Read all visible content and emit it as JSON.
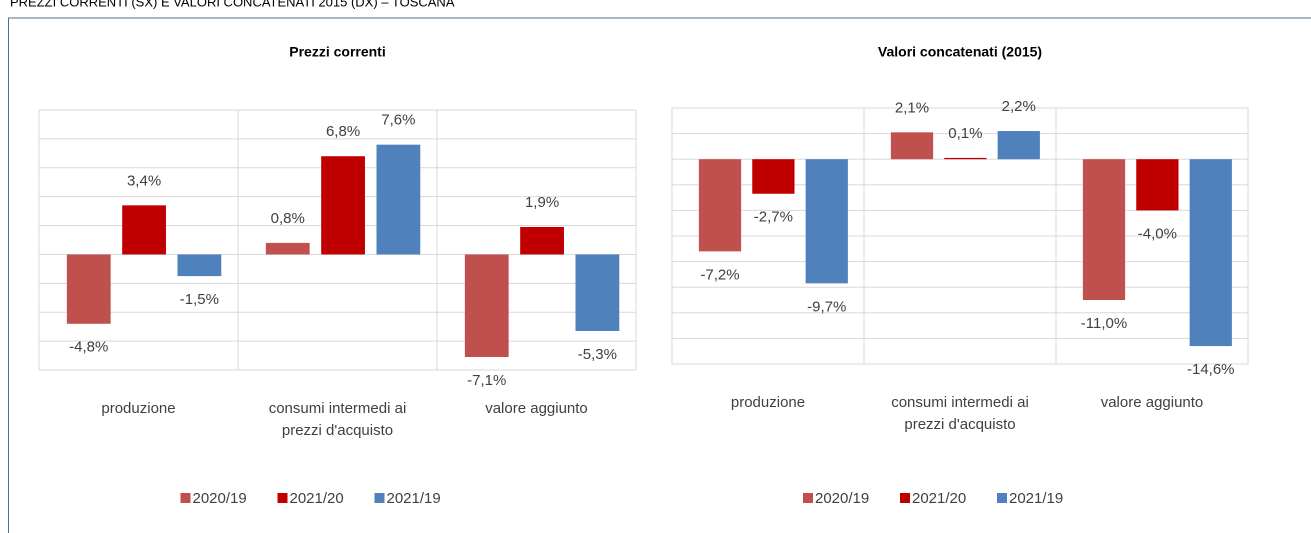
{
  "header": {
    "title": "PREZZI CORRENTI (SX) E VALORI CONCATENATI 2015 (DX) – TOSCANA"
  },
  "chart_data": [
    {
      "type": "bar",
      "title": "Prezzi correnti",
      "categories": [
        "produzione",
        "consumi intermedi ai prezzi d'acquisto",
        "valore aggiunto"
      ],
      "series": [
        {
          "name": "2020/19",
          "color": "#c0504d",
          "values": [
            -4.8,
            0.8,
            -7.1
          ],
          "value_labels": [
            "-4,8%",
            "0,8%",
            "-7,1%"
          ]
        },
        {
          "name": "2021/20",
          "color": "#c00000",
          "values": [
            3.4,
            6.8,
            1.9
          ],
          "value_labels": [
            "3,4%",
            "6,8%",
            "1,9%"
          ]
        },
        {
          "name": "2021/19",
          "color": "#4f81bd",
          "values": [
            -1.5,
            7.6,
            -5.3
          ],
          "value_labels": [
            "-1,5%",
            "7,6%",
            "-5,3%"
          ]
        }
      ],
      "ylim": [
        -8,
        10
      ],
      "yticks": [
        -8,
        -6,
        -4,
        -2,
        0,
        2,
        4,
        6,
        8,
        10
      ],
      "grid": true,
      "legend": "bottom"
    },
    {
      "type": "bar",
      "title": "Valori concatenati (2015)",
      "categories": [
        "produzione",
        "consumi intermedi ai prezzi d'acquisto",
        "valore aggiunto"
      ],
      "series": [
        {
          "name": "2020/19",
          "color": "#c0504d",
          "values": [
            -7.2,
            2.1,
            -11.0
          ],
          "value_labels": [
            "-7,2%",
            "2,1%",
            "-11,0%"
          ]
        },
        {
          "name": "2021/20",
          "color": "#c00000",
          "values": [
            -2.7,
            0.1,
            -4.0
          ],
          "value_labels": [
            "-2,7%",
            "0,1%",
            "-4,0%"
          ]
        },
        {
          "name": "2021/19",
          "color": "#4f81bd",
          "values": [
            -9.7,
            2.2,
            -14.6
          ],
          "value_labels": [
            "-9,7%",
            "2,2%",
            "-14,6%"
          ]
        }
      ],
      "ylim": [
        -16,
        4
      ],
      "yticks": [
        -16,
        -14,
        -12,
        -10,
        -8,
        -6,
        -4,
        -2,
        0,
        2,
        4
      ],
      "grid": true,
      "legend": "bottom"
    }
  ]
}
